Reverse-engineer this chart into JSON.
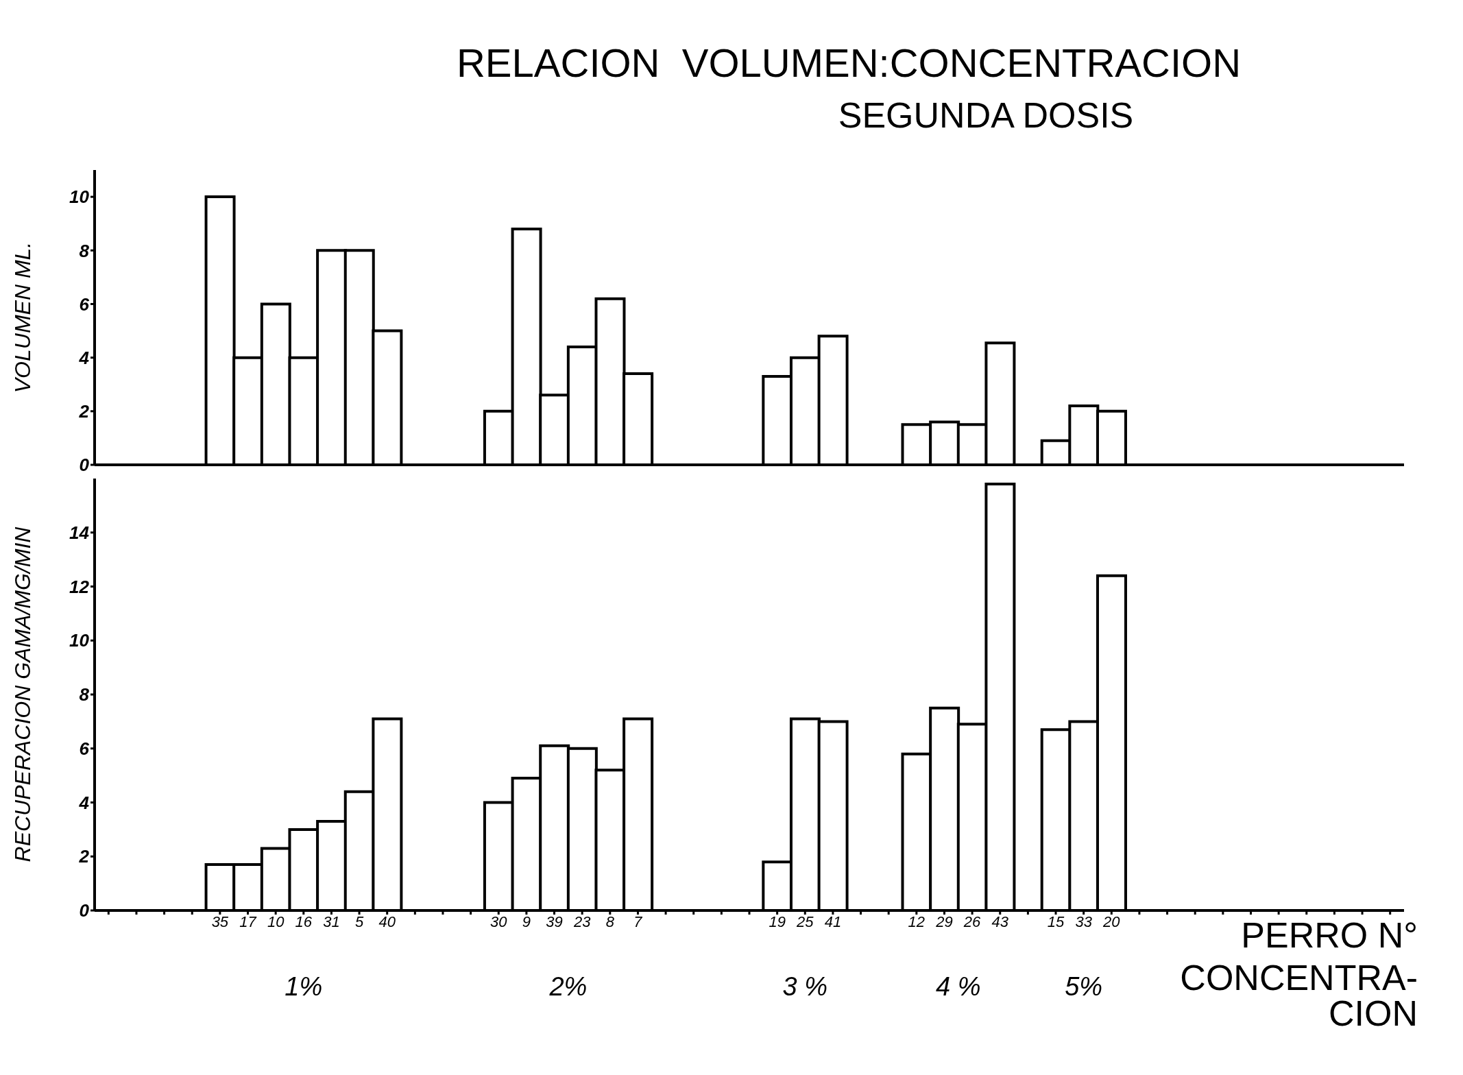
{
  "chart_data": [
    {
      "type": "bar",
      "title": "RELACION  VOLUMEN:CONCENTRACION",
      "subtitle": "SEGUNDA DOSIS",
      "ylabel": "VOLUMEN    ML.",
      "categories": [
        null,
        null,
        null,
        null,
        "35",
        "17",
        "10",
        "16",
        "31",
        "5",
        "40",
        null,
        null,
        null,
        "30",
        "9",
        "39",
        "23",
        "8",
        "7",
        null,
        null,
        null,
        null,
        "19",
        "25",
        "41",
        null,
        null,
        "12",
        "29",
        "26",
        "43",
        null,
        "15",
        "33",
        "20",
        null,
        null,
        null,
        null,
        null,
        null,
        null,
        null,
        null,
        null
      ],
      "series": [
        {
          "color": "#ffffff",
          "values": [
            null,
            null,
            null,
            null,
            10,
            4,
            6,
            4,
            8,
            8,
            5,
            null,
            null,
            null,
            2,
            8.8,
            2.6,
            4.4,
            6.2,
            3.4,
            null,
            null,
            null,
            null,
            3.3,
            4,
            4.8,
            null,
            null,
            1.5,
            1.6,
            1.5,
            4.55,
            null,
            0.9,
            2.2,
            2,
            null,
            null,
            null,
            null,
            null,
            null,
            null,
            null,
            null,
            null
          ]
        }
      ],
      "ylim": [
        0,
        11
      ],
      "yticks": [
        0,
        2,
        4,
        6,
        8,
        10
      ],
      "tick_labels": "y",
      "grid": false,
      "legend": false
    },
    {
      "type": "bar",
      "ylabel": "RECUPERACION    GAMA/MG/MIN",
      "categories": [
        null,
        null,
        null,
        null,
        "35",
        "17",
        "10",
        "16",
        "31",
        "5",
        "40",
        null,
        null,
        null,
        "30",
        "9",
        "39",
        "23",
        "8",
        "7",
        null,
        null,
        null,
        null,
        "19",
        "25",
        "41",
        null,
        null,
        "12",
        "29",
        "26",
        "43",
        null,
        "15",
        "33",
        "20",
        null,
        null,
        null,
        null,
        null,
        null,
        null,
        null,
        null,
        null
      ],
      "series": [
        {
          "color": "#ffffff",
          "values": [
            null,
            null,
            null,
            null,
            1.7,
            1.7,
            2.3,
            3,
            3.3,
            4.4,
            7.1,
            null,
            null,
            null,
            4,
            4.9,
            6.1,
            6,
            5.2,
            7.1,
            null,
            null,
            null,
            null,
            1.8,
            7.1,
            7,
            null,
            null,
            5.8,
            7.5,
            6.9,
            15.8,
            null,
            6.7,
            7,
            12.4,
            null,
            null,
            null,
            null,
            null,
            null,
            null,
            null,
            null,
            null
          ]
        }
      ],
      "ylim": [
        0,
        16
      ],
      "yticks": [
        0,
        2,
        4,
        6,
        8,
        10,
        12,
        14
      ],
      "grid": false,
      "legend": false,
      "annotations": [
        "1%",
        "2%",
        "3 %",
        "4 %",
        "5%",
        "PERRO N°",
        "CONCENTRA-\nCION"
      ]
    }
  ]
}
